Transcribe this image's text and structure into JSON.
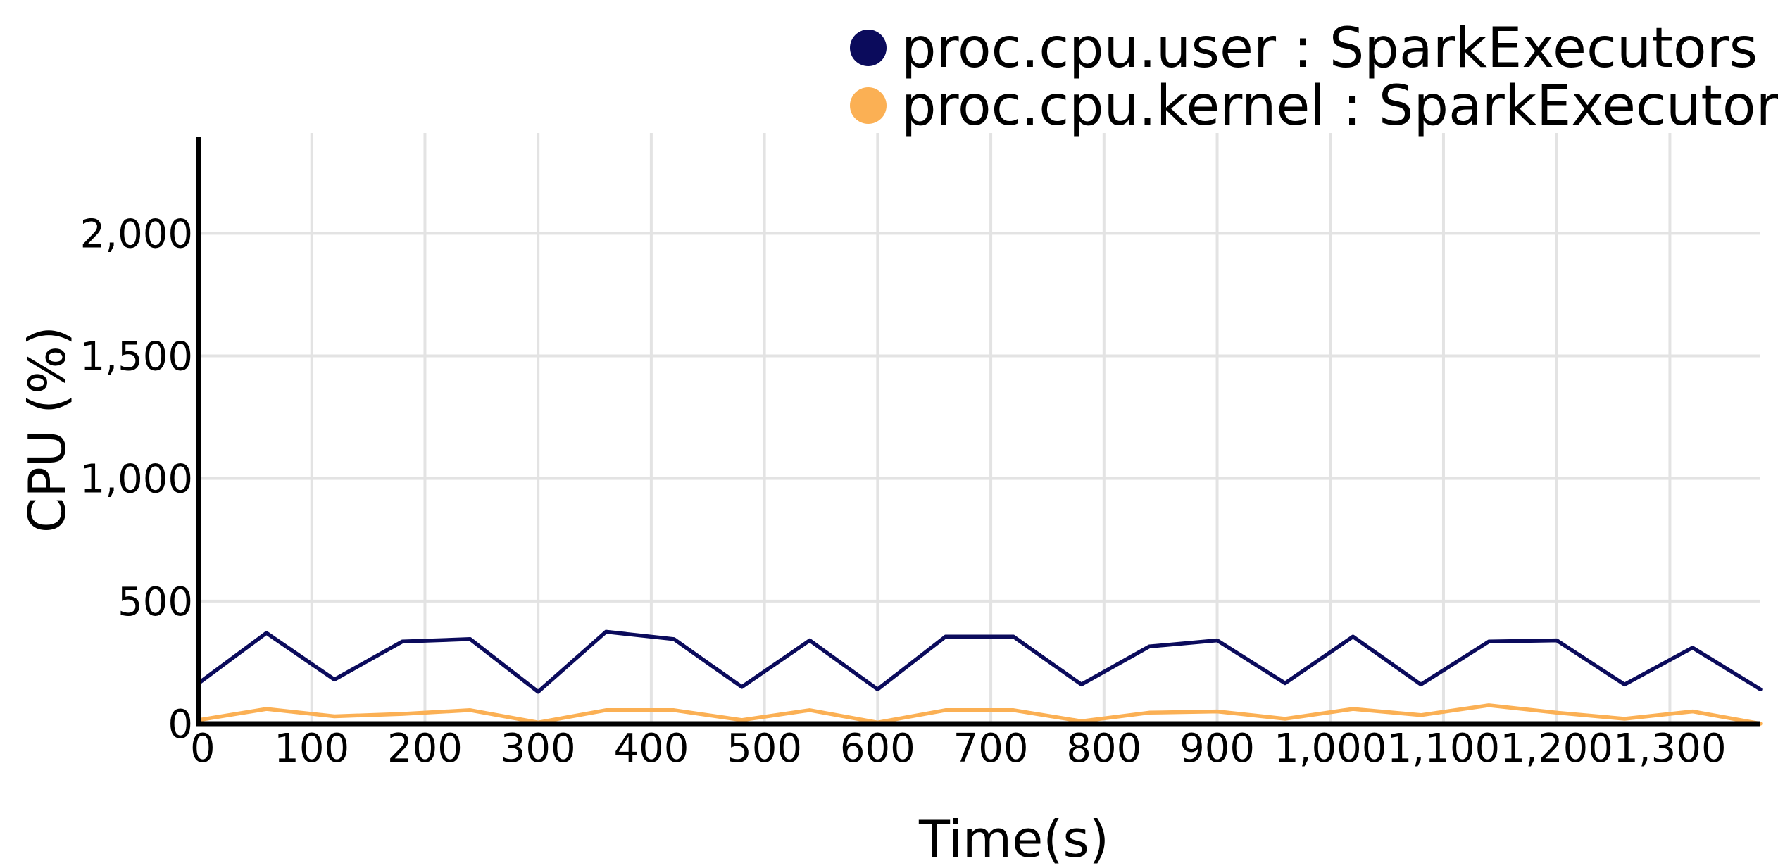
{
  "chart_data": {
    "type": "line",
    "title": "",
    "xlabel": "Time(s)",
    "ylabel": "CPU (%)",
    "xlim": [
      0,
      1380
    ],
    "ylim": [
      0,
      2400
    ],
    "grid": true,
    "legend_position": "top-right",
    "x_ticks": [
      0,
      100,
      200,
      300,
      400,
      500,
      600,
      700,
      800,
      900,
      1000,
      1100,
      1200,
      1300
    ],
    "x_tick_labels": [
      "0",
      "100",
      "200",
      "300",
      "400",
      "500",
      "600",
      "700",
      "800",
      "900",
      "1,000",
      "1,100",
      "1,200",
      "1,300"
    ],
    "y_ticks": [
      0,
      500,
      1000,
      1500,
      2000
    ],
    "y_tick_labels": [
      "0",
      "500",
      "1,000",
      "1,500",
      "2,000"
    ],
    "series": [
      {
        "name": "proc.cpu.user : SparkExecutors",
        "color": "#0b0b5c",
        "x": [
          0,
          60,
          120,
          180,
          240,
          300,
          360,
          420,
          480,
          540,
          600,
          660,
          720,
          780,
          840,
          900,
          960,
          1020,
          1080,
          1140,
          1200,
          1260,
          1320,
          1380
        ],
        "y": [
          165,
          370,
          180,
          335,
          345,
          130,
          375,
          345,
          150,
          340,
          140,
          355,
          355,
          160,
          315,
          340,
          165,
          355,
          160,
          335,
          340,
          160,
          310,
          140
        ]
      },
      {
        "name": "proc.cpu.kernel : SparkExecutors",
        "color": "#fbb054",
        "x": [
          0,
          60,
          120,
          180,
          240,
          300,
          360,
          420,
          480,
          540,
          600,
          660,
          720,
          780,
          840,
          900,
          960,
          1020,
          1080,
          1140,
          1200,
          1260,
          1320,
          1380
        ],
        "y": [
          15,
          60,
          30,
          40,
          55,
          5,
          55,
          55,
          15,
          55,
          5,
          55,
          55,
          10,
          45,
          50,
          20,
          60,
          35,
          75,
          45,
          20,
          50,
          0
        ]
      }
    ]
  }
}
